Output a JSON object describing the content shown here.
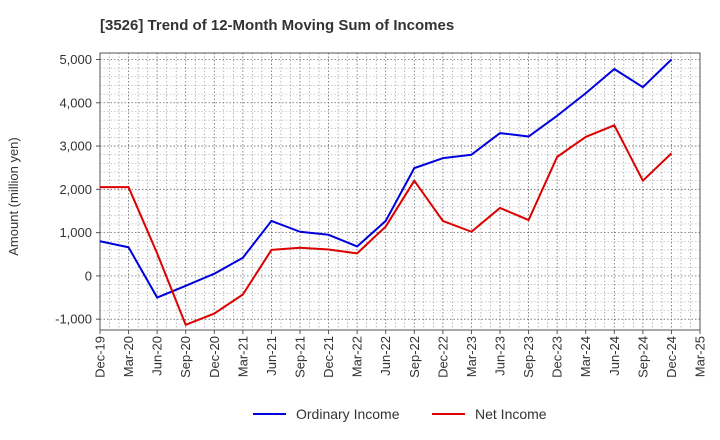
{
  "chart_data": {
    "type": "line",
    "title": "[3526]  Trend of 12-Month Moving Sum of Incomes",
    "xlabel": "",
    "ylabel": "Amount (million yen)",
    "ylim": [
      -1250,
      5150
    ],
    "yticks": [
      -1000,
      0,
      1000,
      2000,
      3000,
      4000,
      5000
    ],
    "ytick_labels": [
      "-1,000",
      "0",
      "1,000",
      "2,000",
      "3,000",
      "4,000",
      "5,000"
    ],
    "x": [
      "Dec-19",
      "Mar-20",
      "Jun-20",
      "Sep-20",
      "Dec-20",
      "Mar-21",
      "Jun-21",
      "Sep-21",
      "Dec-21",
      "Mar-22",
      "Jun-22",
      "Sep-22",
      "Dec-22",
      "Mar-23",
      "Jun-23",
      "Sep-23",
      "Dec-23",
      "Mar-24",
      "Jun-24",
      "Sep-24",
      "Dec-24",
      "Mar-25"
    ],
    "grid": true,
    "legend_position": "bottom",
    "series": [
      {
        "name": "Ordinary Income",
        "color": "#0000dd",
        "values": [
          800,
          660,
          -500,
          -230,
          50,
          420,
          1270,
          1020,
          950,
          680,
          1270,
          2490,
          2720,
          2800,
          3300,
          3220,
          3700,
          4220,
          4780,
          4360,
          5000,
          null
        ]
      },
      {
        "name": "Net Income",
        "color": "#dd0000",
        "values": [
          2050,
          2050,
          520,
          -1130,
          -870,
          -430,
          600,
          650,
          610,
          520,
          1140,
          2200,
          1270,
          1020,
          1570,
          1290,
          2750,
          3210,
          3480,
          2200,
          2830,
          null
        ]
      }
    ]
  }
}
